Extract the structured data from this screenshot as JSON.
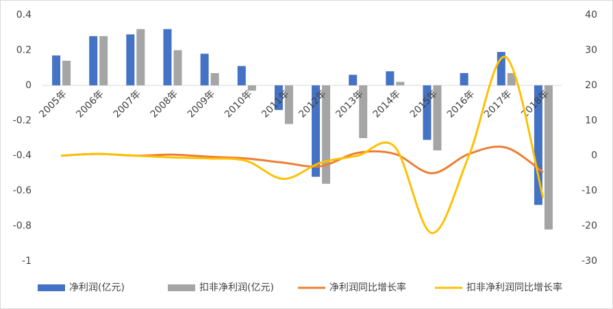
{
  "chart_data": {
    "type": "bar-line",
    "categories": [
      "2005年",
      "2006年",
      "2007年",
      "2008年",
      "2009年",
      "2010年",
      "2011年",
      "2012年",
      "2013年",
      "2014年",
      "2015年",
      "2016年",
      "2017年",
      "2018年"
    ],
    "series": [
      {
        "name": "净利润(亿元)",
        "color": "#4472c4",
        "type": "bar",
        "values": [
          0.17,
          0.28,
          0.29,
          0.32,
          0.18,
          0.11,
          -0.14,
          -0.52,
          0.06,
          0.08,
          -0.31,
          0.07,
          0.19,
          -0.68
        ]
      },
      {
        "name": "扣非净利润(亿元)",
        "color": "#a5a5a5",
        "type": "bar",
        "values": [
          0.14,
          0.28,
          0.32,
          0.2,
          0.07,
          -0.03,
          -0.22,
          -0.56,
          -0.3,
          0.02,
          -0.37,
          0,
          0.07,
          -0.82
        ]
      },
      {
        "name": "净利润同比增长率",
        "color": "#ed7d31",
        "type": "line",
        "axis": "y2",
        "values": [
          0,
          0.5,
          0,
          0.3,
          -0.3,
          -0.8,
          -2,
          -3,
          0.8,
          0.5,
          -5,
          0.5,
          2.3,
          -4.7
        ]
      },
      {
        "name": "扣非净利润同比增长率",
        "color": "#ffc000",
        "type": "line",
        "axis": "y2",
        "values": [
          0,
          0.5,
          0,
          -0.5,
          -0.8,
          -1.5,
          -6.6,
          -2,
          0,
          2.5,
          -22,
          0,
          28,
          -12
        ]
      }
    ],
    "ylim": [
      -1,
      0.4
    ],
    "yticks": [
      {
        "value": -1,
        "label": "-1"
      },
      -0.8,
      -0.6,
      -0.4,
      -0.2,
      0,
      0.2,
      0.4
    ],
    "y2lim": [
      -30,
      40
    ],
    "y2ticks": [
      -30,
      -20,
      -10,
      0,
      10,
      20,
      30,
      40
    ],
    "legend": "bottom"
  }
}
